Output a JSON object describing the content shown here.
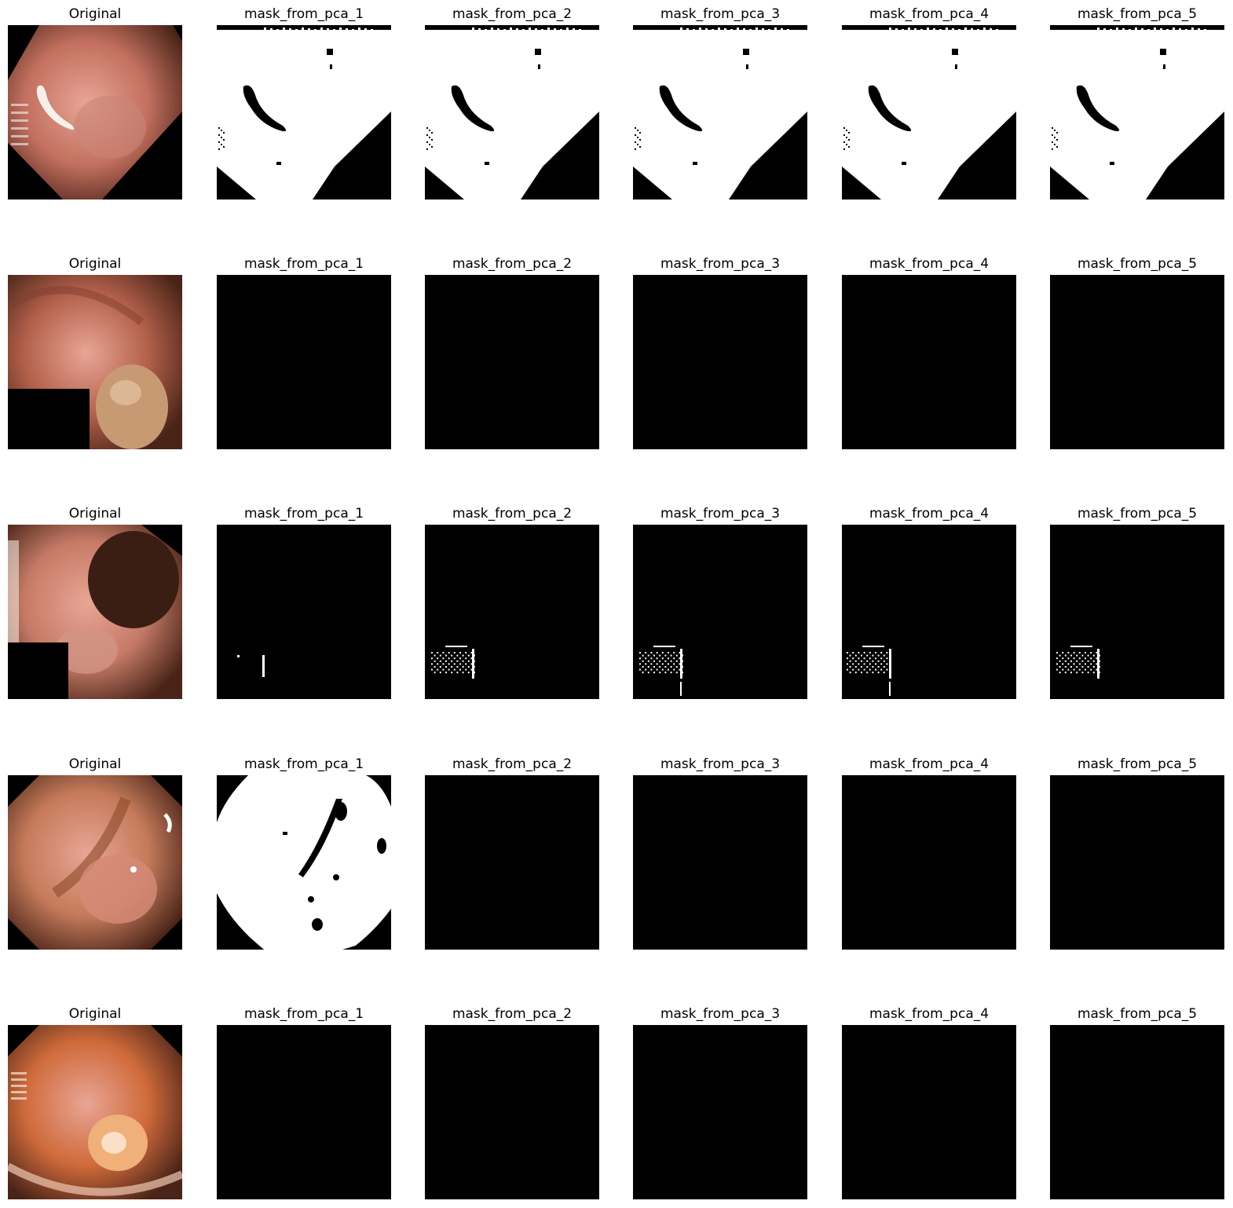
{
  "titles": {
    "original": "Original",
    "masks": [
      "mask_from_pca_1",
      "mask_from_pca_2",
      "mask_from_pca_3",
      "mask_from_pca_4",
      "mask_from_pca_5"
    ]
  },
  "rows": [
    {
      "original_tone": "#c26f5e",
      "masks": [
        "mostly-white",
        "mostly-white",
        "mostly-white",
        "mostly-white",
        "mostly-white"
      ]
    },
    {
      "original_tone": "#b2604a",
      "masks": [
        "black",
        "black",
        "black",
        "black",
        "black"
      ]
    },
    {
      "original_tone": "#c57a66",
      "masks": [
        "black-speck",
        "black-cluster",
        "black-cluster",
        "black-cluster",
        "black-cluster"
      ]
    },
    {
      "original_tone": "#c47a5a",
      "masks": [
        "mostly-white-round",
        "black",
        "black",
        "black",
        "black"
      ]
    },
    {
      "original_tone": "#cf6a3a",
      "masks": [
        "black",
        "black",
        "black",
        "black",
        "black"
      ]
    }
  ],
  "colors": {
    "mask_on": "#ffffff",
    "mask_off": "#000000",
    "background": "#ffffff"
  }
}
